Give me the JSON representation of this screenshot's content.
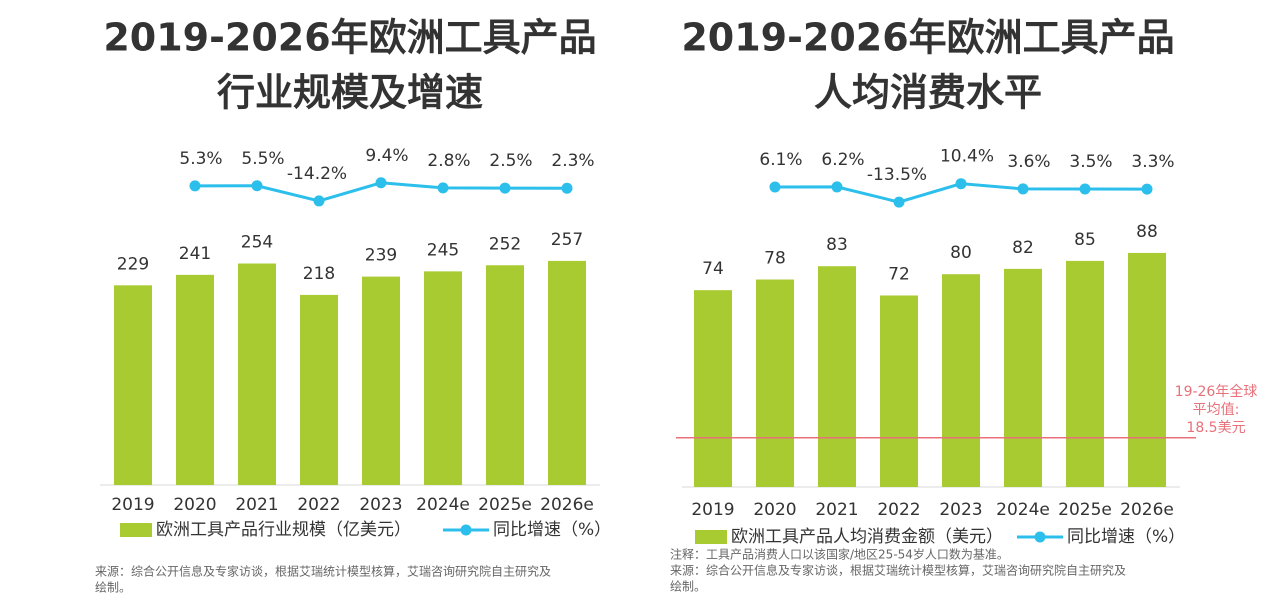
{
  "chart_data": [
    {
      "type": "bar_line",
      "title": [
        "2019-2026年欧洲工具产品",
        "行业规模及增速"
      ],
      "categories": [
        "2019",
        "2020",
        "2021",
        "2022",
        "2023",
        "2024e",
        "2025e",
        "2026e"
      ],
      "series": [
        {
          "name": "欧洲工具产品行业规模（亿美元）",
          "color": "#a8cb32",
          "type": "bar",
          "values": [
            229,
            241,
            254,
            218,
            239,
            245,
            252,
            257
          ]
        },
        {
          "name": "同比增速（%）",
          "color": "#2cbfec",
          "type": "line",
          "values": [
            null,
            5.3,
            5.5,
            -14.2,
            9.4,
            2.8,
            2.5,
            2.3
          ],
          "value_labels": [
            null,
            "5.3%",
            "5.5%",
            "-14.2%",
            "9.4%",
            "2.8%",
            "2.5%",
            "2.3%"
          ]
        }
      ],
      "notes": [
        "来源：综合公开信息及专家访谈，根据艾瑞统计模型核算，艾瑞咨询研究院自主研究及",
        "绘制。"
      ]
    },
    {
      "type": "bar_line",
      "title": [
        "2019-2026年欧洲工具产品",
        "人均消费水平"
      ],
      "categories": [
        "2019",
        "2020",
        "2021",
        "2022",
        "2023",
        "2024e",
        "2025e",
        "2026e"
      ],
      "series": [
        {
          "name": "欧洲工具产品人均消费金额（美元）",
          "color": "#a8cb32",
          "type": "bar",
          "values": [
            74,
            78,
            83,
            72,
            80,
            82,
            85,
            88
          ]
        },
        {
          "name": "同比增速（%）",
          "color": "#2cbfec",
          "type": "line",
          "values": [
            null,
            6.1,
            6.2,
            -13.5,
            10.4,
            3.6,
            3.5,
            3.3
          ],
          "value_labels": [
            null,
            "6.1%",
            "6.2%",
            "-13.5%",
            "10.4%",
            "3.6%",
            "3.5%",
            "3.3%"
          ]
        }
      ],
      "reference": {
        "value": 18.5,
        "color": "#e8717a",
        "label": [
          "19-26年全球",
          "平均值:",
          "18.5美元"
        ]
      },
      "notes": [
        "注释：工具产品消费人口以该国家/地区25-54岁人口数为基准。",
        "来源：综合公开信息及专家访谈，根据艾瑞统计模型核算，艾瑞咨询研究院自主研究及",
        "绘制。"
      ]
    }
  ]
}
